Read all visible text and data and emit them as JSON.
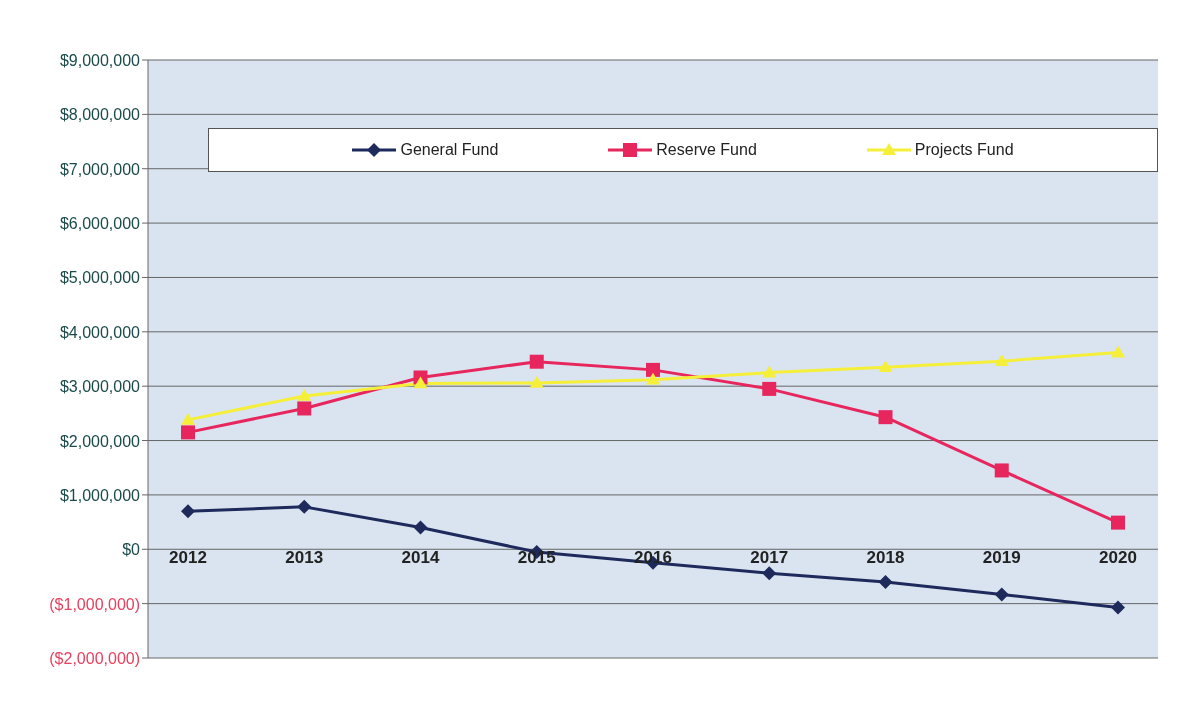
{
  "chart_data": {
    "type": "line",
    "categories": [
      "2012",
      "2013",
      "2014",
      "2015",
      "2016",
      "2017",
      "2018",
      "2019",
      "2020"
    ],
    "series": [
      {
        "name": "General Fund",
        "color": "#1f2a5c",
        "marker": "diamond",
        "values": [
          700000,
          780000,
          400000,
          -50000,
          -250000,
          -440000,
          -600000,
          -830000,
          -1070000
        ]
      },
      {
        "name": "Reserve Fund",
        "color": "#e8265e",
        "marker": "square",
        "values": [
          2150000,
          2590000,
          3160000,
          3450000,
          3300000,
          2950000,
          2430000,
          1450000,
          490000
        ]
      },
      {
        "name": "Projects Fund",
        "color": "#f5ef3a",
        "marker": "triangle",
        "values": [
          2380000,
          2820000,
          3050000,
          3060000,
          3120000,
          3250000,
          3350000,
          3460000,
          3620000
        ]
      }
    ],
    "ylim": [
      -2000000,
      9000000
    ],
    "yticks": [
      {
        "value": -2000000,
        "label": "($2,000,000)"
      },
      {
        "value": -1000000,
        "label": "($1,000,000)"
      },
      {
        "value": 0,
        "label": "$0"
      },
      {
        "value": 1000000,
        "label": "$1,000,000"
      },
      {
        "value": 2000000,
        "label": "$2,000,000"
      },
      {
        "value": 3000000,
        "label": "$3,000,000"
      },
      {
        "value": 4000000,
        "label": "$4,000,000"
      },
      {
        "value": 5000000,
        "label": "$5,000,000"
      },
      {
        "value": 6000000,
        "label": "$6,000,000"
      },
      {
        "value": 7000000,
        "label": "$7,000,000"
      },
      {
        "value": 8000000,
        "label": "$8,000,000"
      },
      {
        "value": 9000000,
        "label": "$9,000,000"
      }
    ],
    "grid": "y",
    "legend": "top",
    "line_style": "solid"
  }
}
